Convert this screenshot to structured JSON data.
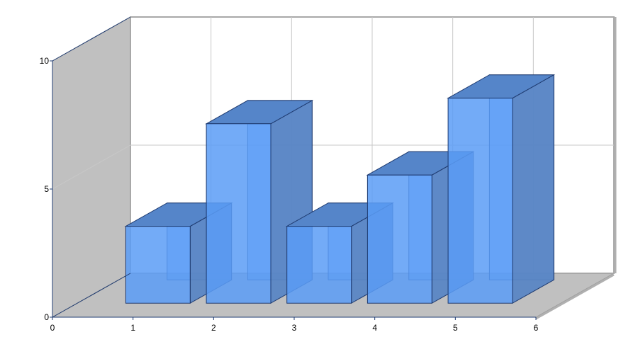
{
  "chart_data": {
    "type": "bar",
    "style": "3d",
    "x": [
      1,
      2,
      3,
      4,
      5
    ],
    "values": [
      3,
      7,
      3,
      5,
      8
    ],
    "xlim": [
      0,
      6
    ],
    "ylim": [
      0,
      10
    ],
    "x_ticks": [
      "0",
      "1",
      "2",
      "3",
      "4",
      "5",
      "6"
    ],
    "y_ticks": [
      "0",
      "5",
      "10"
    ],
    "grid": true,
    "legend": "none",
    "colors": {
      "bar_front": "#5b9cf6",
      "bar_top": "#5585c9",
      "bar_side": "#5a86c4",
      "bar_edge": "#1f3b70",
      "wall": "#c0c0c0",
      "grid": "#c8c8c8",
      "axis": "#1f3b70"
    }
  }
}
